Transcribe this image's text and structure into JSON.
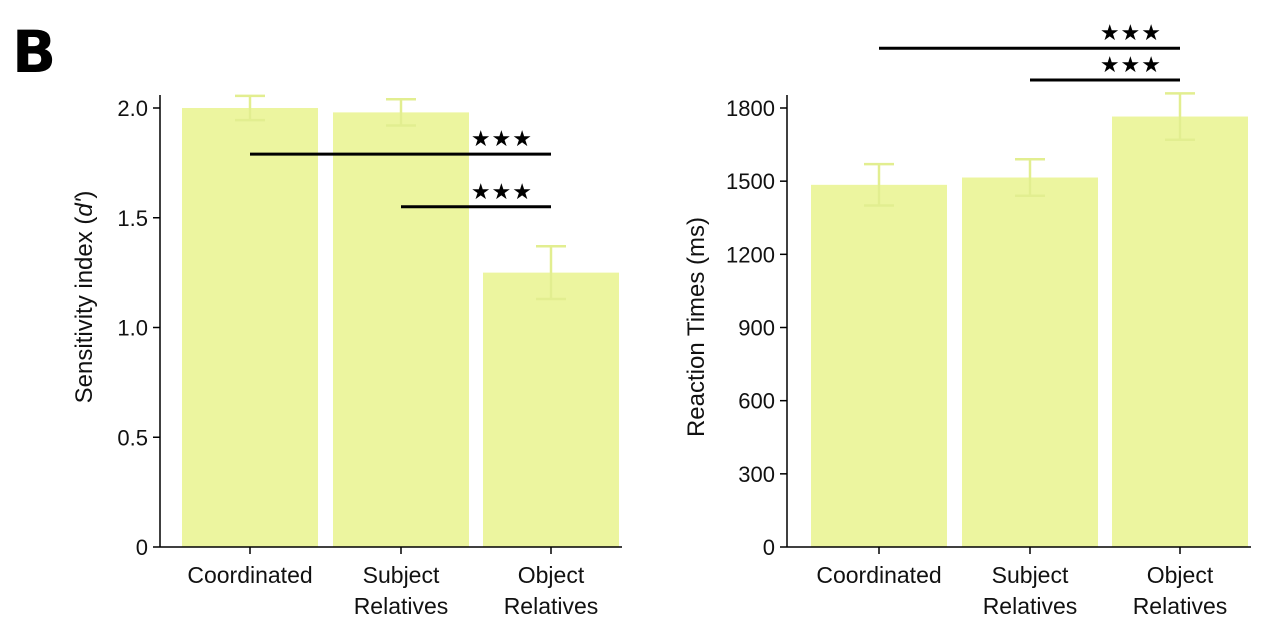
{
  "panel_label": "B",
  "colors": {
    "bar": "#ecf59f",
    "error_bar": "#e2ee90",
    "axis": "#000000",
    "sig_line": "#000000"
  },
  "chart_data": [
    {
      "type": "bar",
      "categories": [
        [
          "Coordinated"
        ],
        [
          "Subject",
          "Relatives"
        ],
        [
          "Object",
          "Relatives"
        ]
      ],
      "values": [
        2.0,
        1.98,
        1.25
      ],
      "errors": [
        0.055,
        0.06,
        0.12
      ],
      "title": "",
      "ylabel_parts": [
        "Sensitivity index (",
        "d'",
        ")"
      ],
      "ylim": [
        0,
        2.05
      ],
      "yticks": [
        0,
        0.5,
        1.0,
        1.5,
        2.0
      ],
      "ytick_labels": [
        "0",
        "0.5",
        "1.0",
        "1.5",
        "2.0"
      ],
      "grid": false,
      "significance": [
        {
          "from": 0,
          "to": 2,
          "label": "★★★",
          "y": 1.79
        },
        {
          "from": 1,
          "to": 2,
          "label": "★★★",
          "y": 1.55
        }
      ]
    },
    {
      "type": "bar",
      "categories": [
        [
          "Coordinated"
        ],
        [
          "Subject",
          "Relatives"
        ],
        [
          "Object",
          "Relatives"
        ]
      ],
      "values": [
        1485,
        1515,
        1765
      ],
      "errors": [
        85,
        75,
        95
      ],
      "title": "",
      "ylabel_parts": [
        "Reaction Times (ms)"
      ],
      "ylim": [
        0,
        1800
      ],
      "yticks": [
        0,
        300,
        600,
        900,
        1200,
        1500,
        1800
      ],
      "ytick_labels": [
        "0",
        "300",
        "600",
        "900",
        "1200",
        "1500",
        "1800"
      ],
      "grid": false,
      "significance": [
        {
          "from": 0,
          "to": 2,
          "label": "★★★",
          "y": 2045
        },
        {
          "from": 1,
          "to": 2,
          "label": "★★★",
          "y": 1915
        }
      ]
    }
  ]
}
